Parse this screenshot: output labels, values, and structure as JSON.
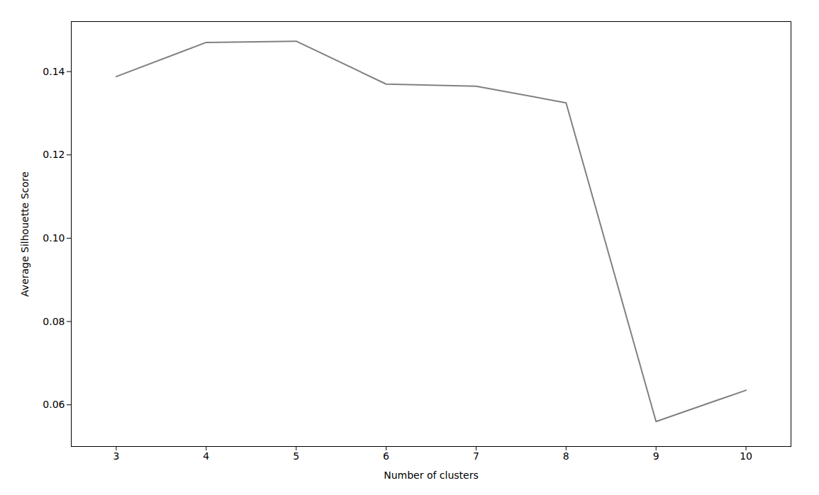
{
  "chart_data": {
    "type": "line",
    "x": [
      3,
      4,
      5,
      6,
      7,
      8,
      9,
      10
    ],
    "values": [
      0.1388,
      0.147,
      0.1473,
      0.137,
      0.1365,
      0.1325,
      0.056,
      0.0635
    ],
    "color": "#808080",
    "xlabel": "Number of clusters",
    "ylabel": "Average Silhouette Score",
    "xlim": [
      2.5,
      10.5
    ],
    "ylim": [
      0.05,
      0.152
    ],
    "xticks": [
      3,
      4,
      5,
      6,
      7,
      8,
      9,
      10
    ],
    "yticks": [
      0.06,
      0.08,
      {
        "value": 0.1,
        "label": "0.10"
      },
      0.12,
      0.14
    ],
    "grid": false
  }
}
